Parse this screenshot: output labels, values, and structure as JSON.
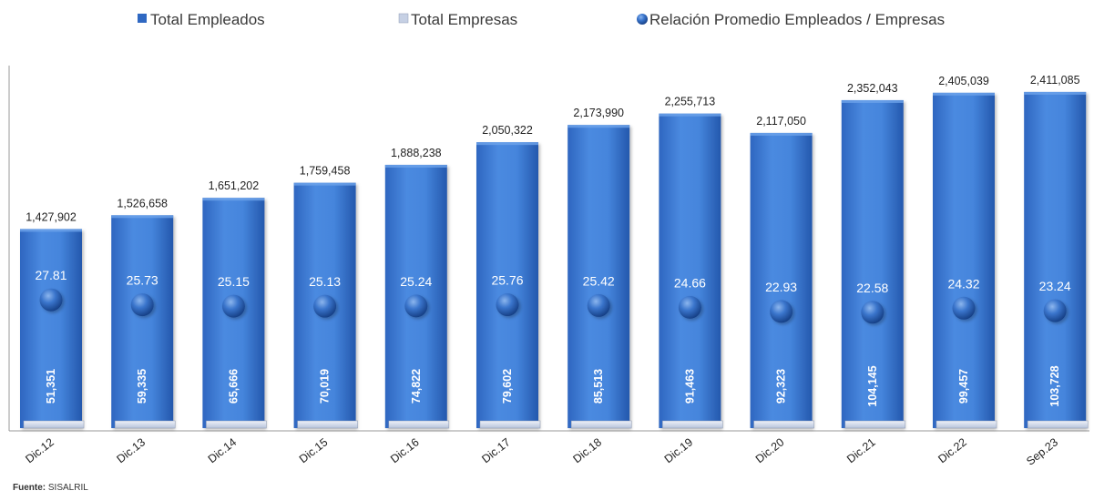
{
  "chart_data": {
    "type": "bar",
    "categories": [
      "Dic.12",
      "Dic.13",
      "Dic.14",
      "Dic.15",
      "Dic.16",
      "Dic.17",
      "Dic.18",
      "Dic.19",
      "Dic.20",
      "Dic.21",
      "Dic.22",
      "Sep.23"
    ],
    "series": [
      {
        "name": "Total  Empleados",
        "values": [
          1427902,
          1526658,
          1651202,
          1759458,
          1888238,
          2050322,
          2173990,
          2255713,
          2117050,
          2352043,
          2405039,
          2411085
        ],
        "labels": [
          "1,427,902",
          "1,526,658",
          "1,651,202",
          "1,759,458",
          "1,888,238",
          "2,050,322",
          "2,173,990",
          "2,255,713",
          "2,117,050",
          "2,352,043",
          "2,405,039",
          "2,411,085"
        ]
      },
      {
        "name": "Total Empresas",
        "values": [
          51351,
          59335,
          65666,
          70019,
          74822,
          79602,
          85513,
          91463,
          92323,
          104145,
          99457,
          103728
        ],
        "labels": [
          "51,351",
          "59,335",
          "65,666",
          "70,019",
          "74,822",
          "79,602",
          "85,513",
          "91,463",
          "92,323",
          "104,145",
          "99,457",
          "103,728"
        ]
      },
      {
        "name": "Relación Promedio Empleados / Empresas",
        "values": [
          27.81,
          25.73,
          25.15,
          25.13,
          25.24,
          25.76,
          25.42,
          24.66,
          22.93,
          22.58,
          24.32,
          23.24
        ],
        "labels": [
          "27.81",
          "25.73",
          "25.15",
          "25.13",
          "25.24",
          "25.76",
          "25.42",
          "24.66",
          "22.93",
          "22.58",
          "24.32",
          "23.24"
        ]
      }
    ],
    "ylim": [
      0,
      2600000
    ],
    "legend_position": "top",
    "grid": false,
    "colors": {
      "bar": "#3f7fd6",
      "bar_dark": "#1b4fa6",
      "base": "#c9d3e6",
      "dot": "#2a63b8"
    }
  },
  "source": {
    "label": "Fuente:",
    "text": "SISALRIL"
  }
}
